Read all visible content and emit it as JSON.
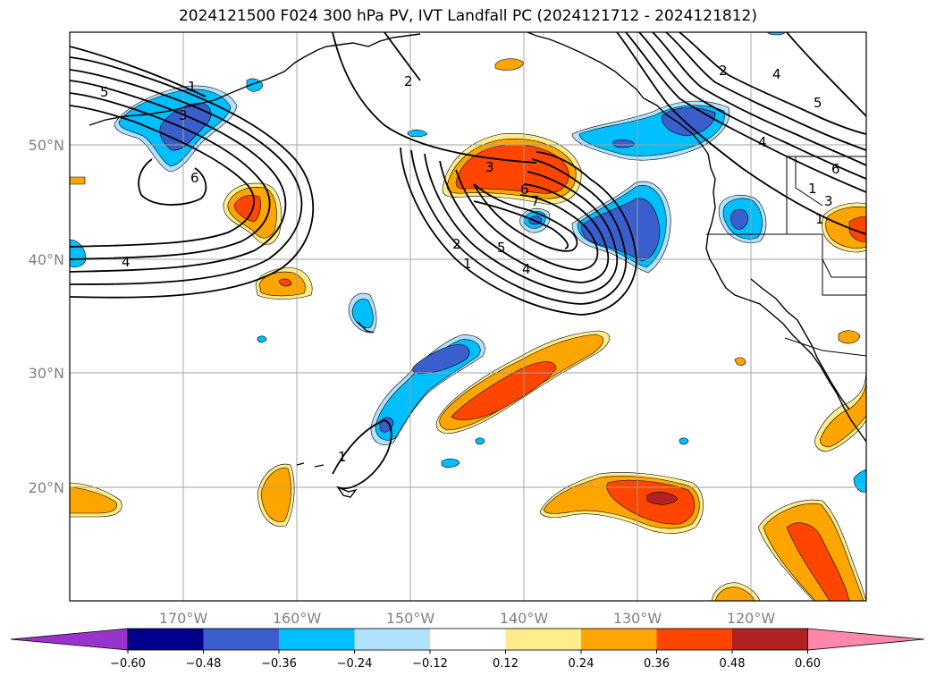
{
  "title": "2024121500 F024 300 hPa PV, IVT Landfall PC (2024121712 - 2024121812)",
  "map": {
    "lat_labels": [
      "50°N",
      "40°N",
      "30°N",
      "20°N"
    ],
    "lon_labels": [
      "170°W",
      "160°W",
      "150°W",
      "140°W",
      "130°W",
      "120°W"
    ],
    "contour_labels": [
      "5",
      "1",
      "3",
      "6",
      "4",
      "2",
      "3",
      "6",
      "7",
      "2",
      "1",
      "5",
      "4",
      "2",
      "5",
      "4",
      "5",
      "4",
      "2",
      "6",
      "1",
      "3",
      "1",
      "1"
    ]
  },
  "colorbar": {
    "ticks": [
      "−0.60",
      "−0.48",
      "−0.36",
      "−0.24",
      "−0.12",
      "0.12",
      "0.24",
      "0.36",
      "0.48",
      "0.60"
    ],
    "colors": [
      "#9933cc",
      "#00008b",
      "#3a5fcd",
      "#00bfff",
      "#b0e2ff",
      "#ffffff",
      "#ffec8b",
      "#ffa500",
      "#ff4500",
      "#b22222",
      "#ff88aa"
    ]
  }
}
